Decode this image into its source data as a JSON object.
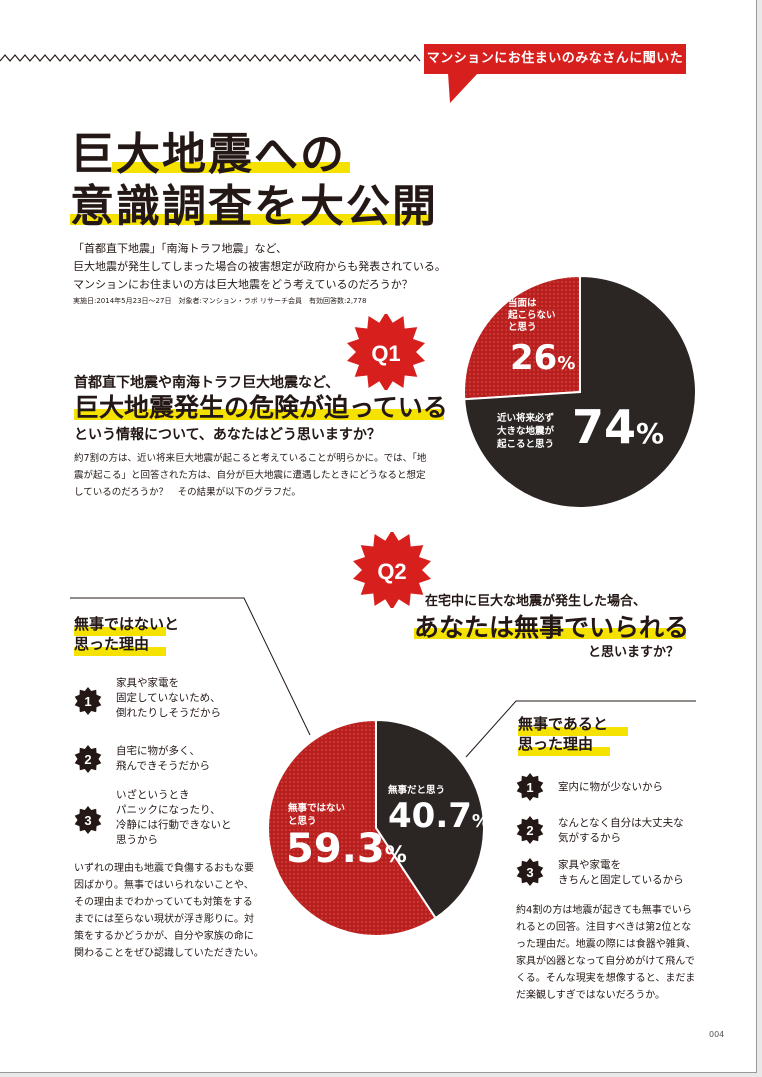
{
  "banner": "マンションにお住まいのみなさんに聞いた",
  "title": {
    "line1": "巨大地震への",
    "line2": "意識調査を大公開"
  },
  "intro": [
    "「首都直下地震」「南海トラフ地震」など、",
    "巨大地震が発生してしまった場合の被害想定が政府からも発表されている。",
    "マンションにお住まいの方は巨大地震をどう考えているのだろうか？"
  ],
  "survey_note": "実施日:2014年5月23日〜27日　対象者:マンション・ラボ リサーチ会員　有効回答数:2,778",
  "q1": {
    "badge": "Q1",
    "heading_line1": "首都直下地震や南海トラフ巨大地震など、",
    "heading_line2": "巨大地震発生の危険が迫っている",
    "heading_line3": "という情報について、あなたはどう思いますか？",
    "body": [
      "約7割の方は、近い将来巨大地震が起こると考えていることが明らかに。では、「地",
      "震が起こる」と回答された方は、自分が巨大地震に遭遇したときにどうなると想定",
      "しているのだろうか？　その結果が以下のグラフだ。"
    ],
    "pie": {
      "small_label": [
        "当面は",
        "起こらない",
        "と思う"
      ],
      "small_value": "26",
      "large_label": [
        "近い将来必ず",
        "大きな地震が",
        "起こると思う"
      ],
      "large_value": "74",
      "percent": "%"
    }
  },
  "q2": {
    "badge": "Q2",
    "heading_line1": "在宅中に巨大な地震が発生した場合、",
    "heading_line2": "あなたは無事でいられる",
    "heading_line3": "と思いますか？",
    "left": {
      "title": [
        "無事ではないと",
        "思った理由"
      ],
      "reasons": [
        {
          "n": "1",
          "lines": [
            "家具や家電を",
            "固定していないため、",
            "倒れたりしそうだから"
          ]
        },
        {
          "n": "2",
          "lines": [
            "自宅に物が多く、",
            "飛んできそうだから"
          ]
        },
        {
          "n": "3",
          "lines": [
            "いざというとき",
            "パニックになったり、",
            "冷静には行動できないと",
            "思うから"
          ]
        }
      ],
      "para": [
        "いずれの理由も地震で負傷するおもな要",
        "因ばかり。無事ではいられないことや、",
        "その理由までわかっていても対策をする",
        "までには至らない現状が浮き彫りに。対",
        "策をするかどうかが、自分や家族の命に",
        "関わることをぜひ認識していただきたい。"
      ]
    },
    "right": {
      "title": [
        "無事であると",
        "思った理由"
      ],
      "reasons": [
        {
          "n": "1",
          "lines": [
            "室内に物が少ないから"
          ]
        },
        {
          "n": "2",
          "lines": [
            "なんとなく自分は大丈夫な",
            "気がするから"
          ]
        },
        {
          "n": "3",
          "lines": [
            "家具や家電を",
            "きちんと固定しているから"
          ]
        }
      ],
      "para": [
        "約4割の方は地震が起きても無事でいら",
        "れるとの回答。注目すべきは第2位とな",
        "った理由だ。地震の際には食器や雑貨、",
        "家具が凶器となって自分めがけて飛んで",
        "くる。そんな現実を想像すると、まだま",
        "だ楽観しすぎではないだろうか。"
      ]
    },
    "pie": {
      "safe_label": "無事だと思う",
      "safe_value": "40.7",
      "unsafe_label": [
        "無事ではない",
        "と思う"
      ],
      "unsafe_value": "59.3",
      "percent": "%"
    }
  },
  "page_number": "004",
  "chart_data": [
    {
      "type": "pie",
      "labels": [
        "当面は起こらないと思う",
        "近い将来必ず大きな地震が起こると思う"
      ],
      "values": [
        26,
        74
      ],
      "colors": [
        "#b8201f",
        "#2b2524"
      ]
    },
    {
      "type": "pie",
      "labels": [
        "無事だと思う",
        "無事ではないと思う"
      ],
      "values": [
        40.7,
        59.3
      ],
      "colors": [
        "#2b2524",
        "#b8201f"
      ]
    }
  ],
  "colors": {
    "red": "#d7201d",
    "dark": "#2b2524",
    "yellow": "#f6e200",
    "pie_red": "#b8201f"
  }
}
